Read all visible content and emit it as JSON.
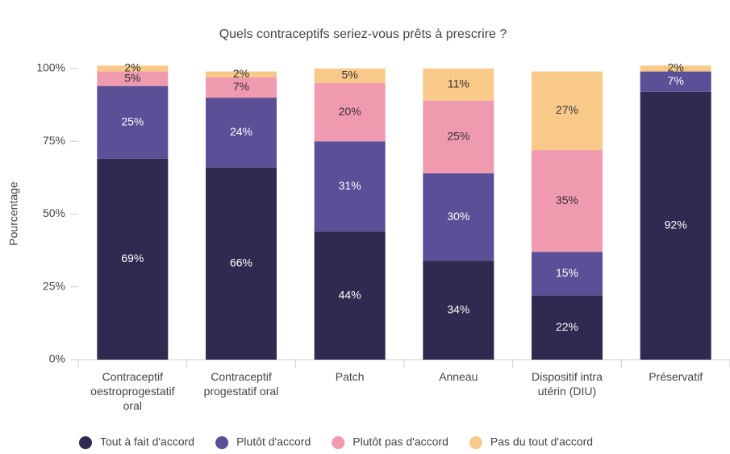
{
  "chart_data": {
    "type": "stacked_bar",
    "title": "Quels contraceptifs seriez-vous prêts à prescrire ?",
    "y_label": "Pourcentage",
    "categories": [
      "Contraceptif oestroprogestatif oral",
      "Contraceptif progestatif oral",
      "Patch",
      "Anneau",
      "Dispositif intra utérin (DIU)",
      "Préservatif"
    ],
    "series": [
      {
        "name": "Tout à fait d'accord",
        "color": "#2f2a4f",
        "values": [
          69,
          66,
          44,
          34,
          22,
          92
        ],
        "value_labels": [
          "69%",
          "66%",
          "44%",
          "34%",
          "22%",
          "92%"
        ]
      },
      {
        "name": "Plutôt d'accord",
        "color": "#5b4f97",
        "values": [
          25,
          24,
          31,
          30,
          15,
          7
        ],
        "value_labels": [
          "25%",
          "24%",
          "31%",
          "30%",
          "15%",
          "7%"
        ]
      },
      {
        "name": "Plutôt pas d'accord",
        "color": "#f09aaf",
        "values": [
          5,
          7,
          20,
          25,
          35,
          0
        ],
        "value_labels": [
          "5%",
          "7%",
          "20%",
          "25%",
          "35%",
          null
        ]
      },
      {
        "name": "Pas du tout d'accord",
        "color": "#f9c98a",
        "values": [
          2,
          2,
          5,
          11,
          27,
          2
        ],
        "value_labels": [
          "2%",
          "2%",
          "5%",
          "11%",
          "27%",
          "2%"
        ]
      }
    ],
    "ylim": [
      0,
      100
    ],
    "yticks": [
      {
        "value": 0,
        "label": "0%"
      },
      {
        "value": 25,
        "label": "25%"
      },
      {
        "value": 50,
        "label": "50%"
      },
      {
        "value": 75,
        "label": "75%"
      },
      {
        "value": 100,
        "label": "100%"
      }
    ],
    "grid": false,
    "legend": "bottom"
  }
}
